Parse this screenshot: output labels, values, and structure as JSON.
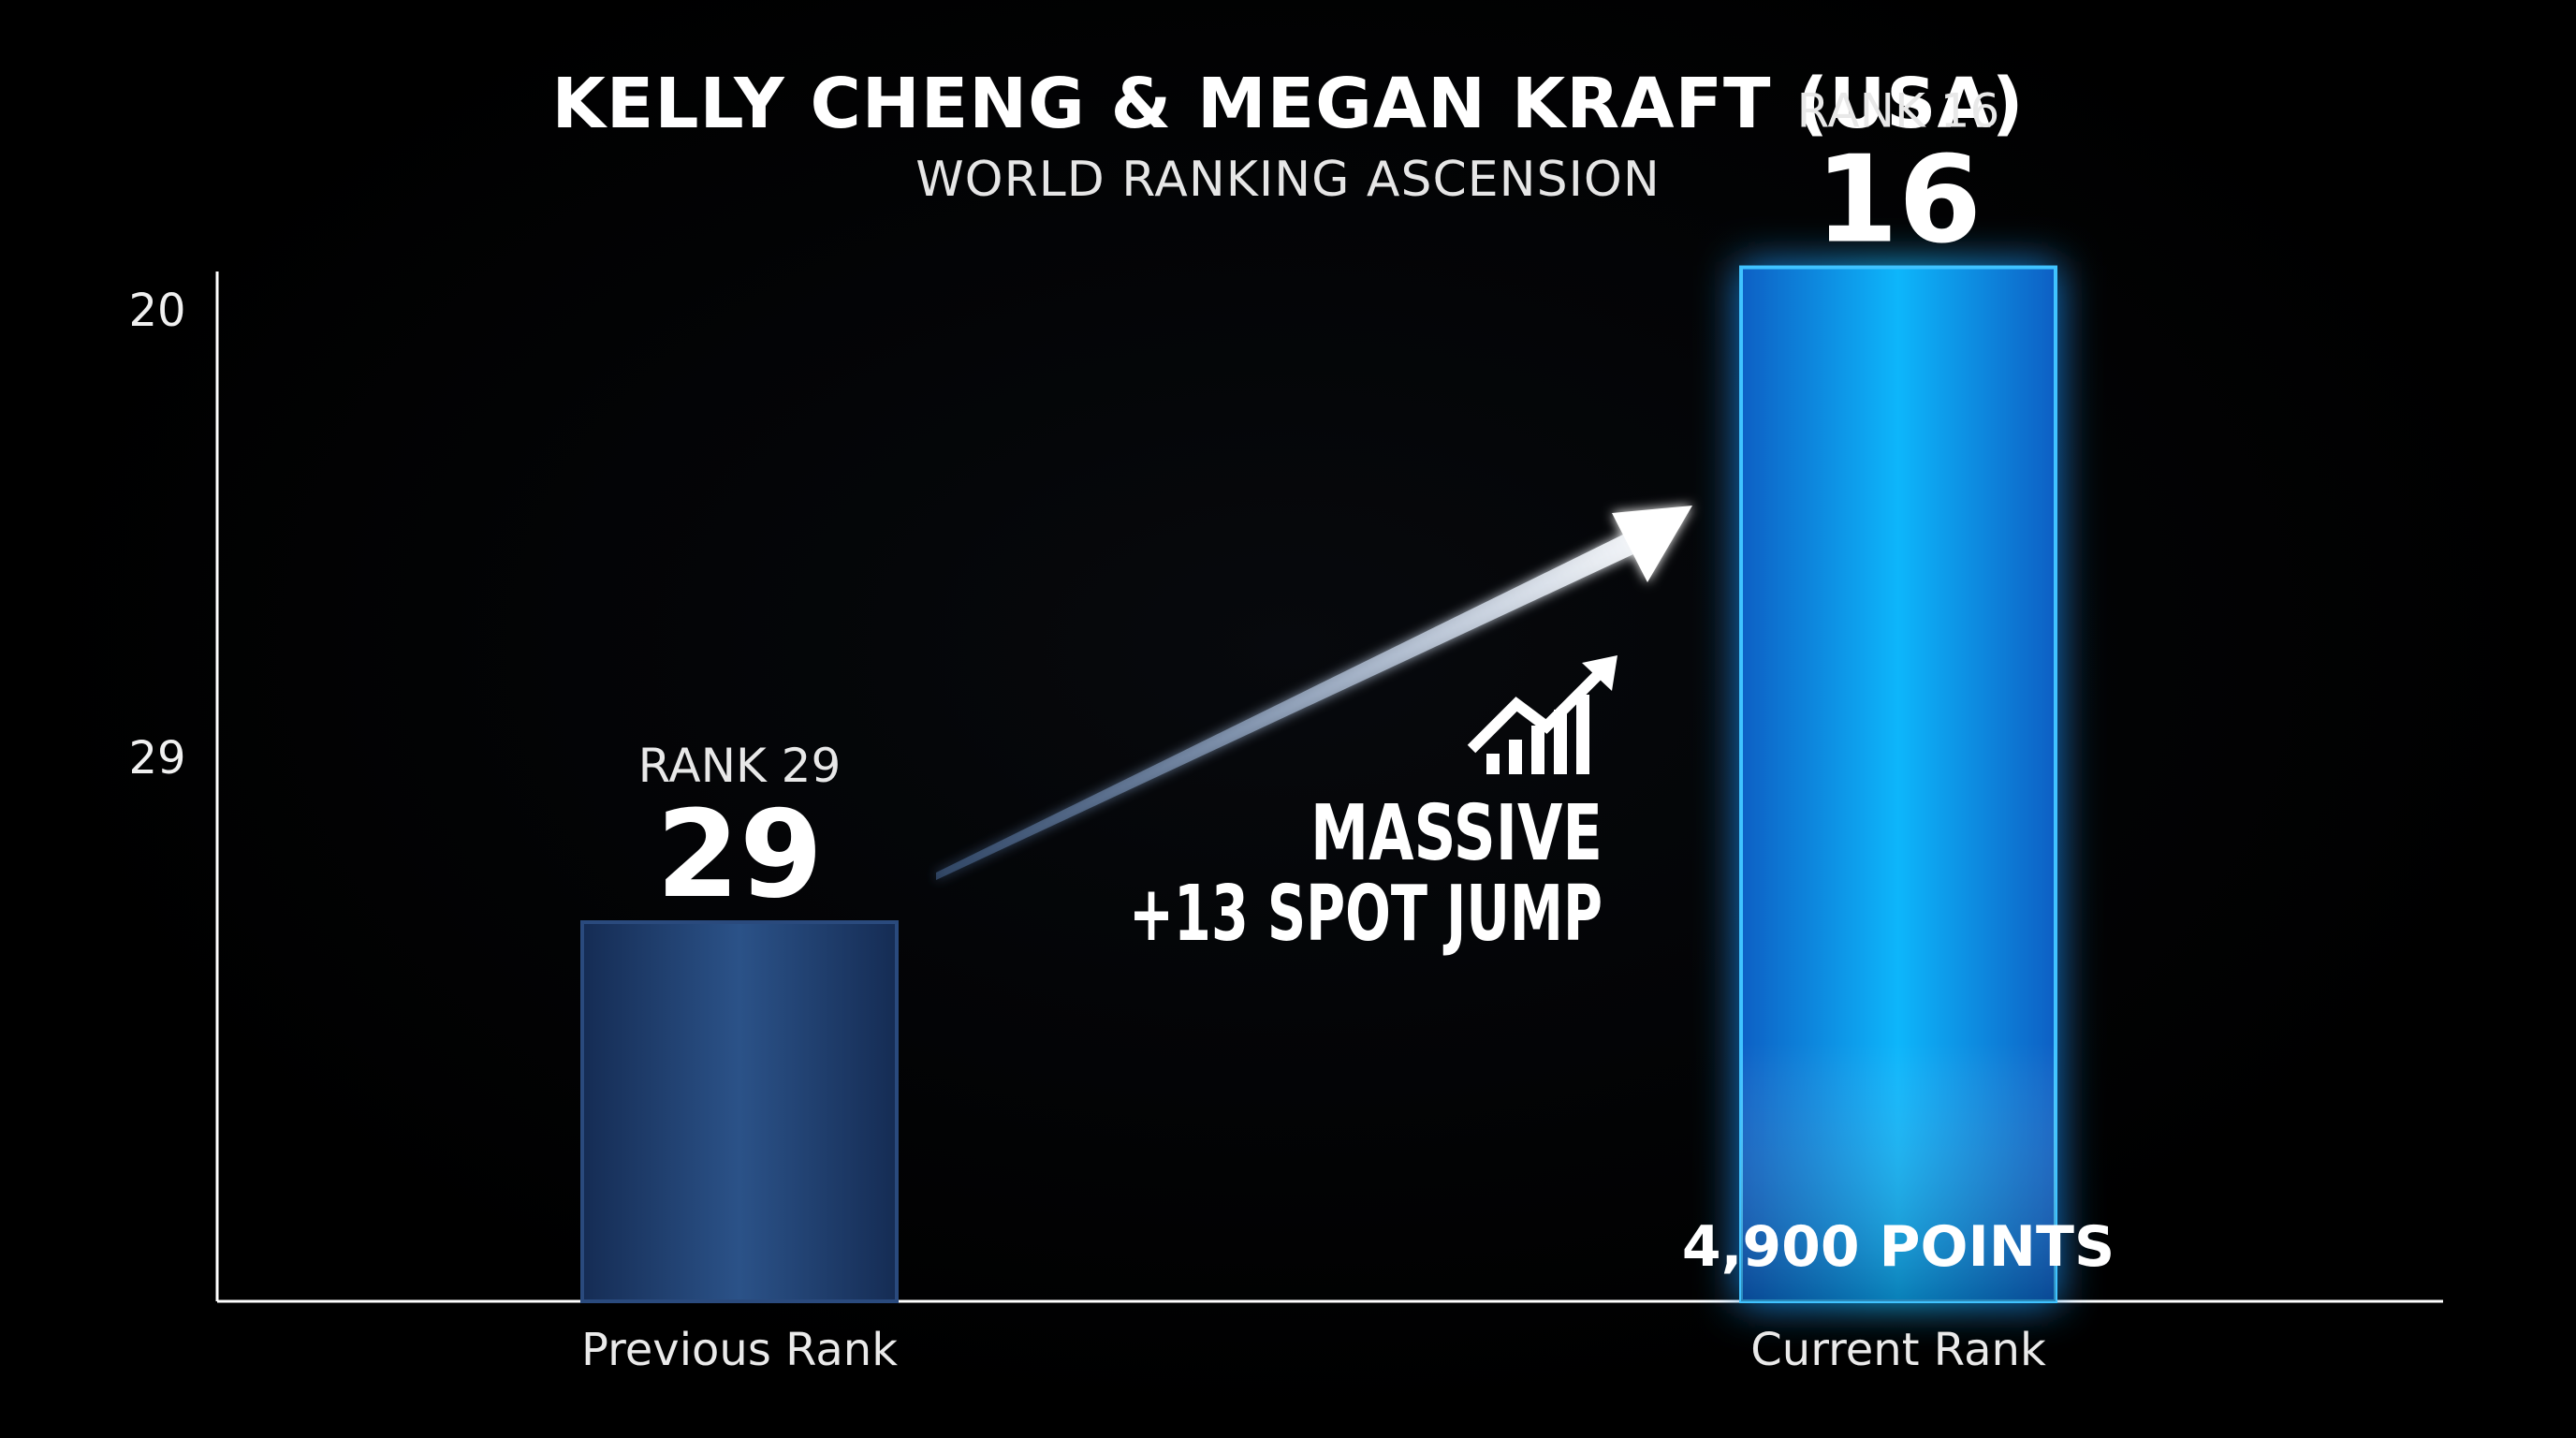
{
  "chart_data": {
    "type": "bar",
    "title": "KELLY CHENG & MEGAN KRAFT (USA)",
    "subtitle": "WORLD RANKING ASCENSION",
    "categories": [
      "Previous Rank",
      "Current Rank"
    ],
    "values": [
      29,
      16
    ],
    "yticks": [
      "20",
      "29"
    ],
    "bar_rank_labels": [
      "RANK 29",
      "RANK 16"
    ],
    "bar_value_labels": [
      "29",
      "16"
    ],
    "bar_inner_labels": [
      "",
      "4,900 POINTS"
    ],
    "annotation": [
      "MASSIVE",
      "+13 SPOT JUMP"
    ],
    "grid": false,
    "colors": {
      "previous_bar": "#1f3f6e",
      "current_bar": "#06a4ee",
      "glow": "#1a8cff",
      "axis": "#ffffff"
    }
  }
}
